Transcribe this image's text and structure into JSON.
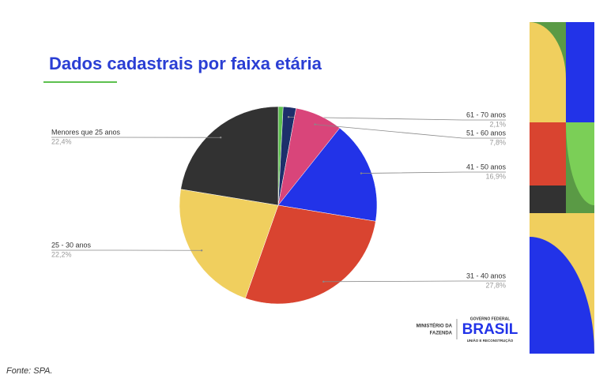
{
  "chart_data": {
    "type": "pie",
    "title": "Dados cadastrais por faixa etária",
    "categories": [
      null,
      "61 - 70 anos",
      "51 - 60 anos",
      "41 - 50 anos",
      "31 - 40 anos",
      "25 - 30 anos",
      "Menores que 25 anos"
    ],
    "values": [
      0.8,
      2.1,
      7.8,
      16.9,
      27.8,
      22.2,
      22.4
    ],
    "value_labels": [
      null,
      "2,1%",
      "7,8%",
      "16,9%",
      "27,8%",
      "22,2%",
      "22,4%"
    ],
    "colors": [
      "#5cc04e",
      "#1d2f6b",
      "#d9457a",
      "#2233e8",
      "#d94430",
      "#f0cf5e",
      "#323232"
    ]
  },
  "source": "Fonte: SPA.",
  "logo": {
    "ministry": [
      "MINISTÉRIO DA",
      "FAZENDA"
    ],
    "top": "GOVERNO FEDERAL",
    "brand": "BRASIL",
    "bottom": "UNIÃO E RECONSTRUÇÃO"
  }
}
